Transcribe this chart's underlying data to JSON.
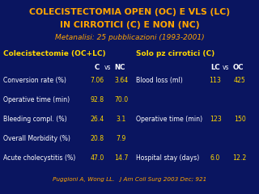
{
  "bg_color": "#0a1560",
  "title_line1": "COLECISTECTOMIA OPEN (OC) E VLS (LC)",
  "title_line2": "IN CIRROTICI (C) E NON (NC)",
  "title_line3": "Metanalisi: 25 pubblicazioni (1993-2001)",
  "left_section_title": "Colecistectomie (OC+LC)",
  "left_rows": [
    [
      "Conversion rate (%)",
      "7.06",
      "3.64"
    ],
    [
      "Operative time (min)",
      "92.8",
      "70.0"
    ],
    [
      "Bleeding compl. (%)",
      "26.4",
      "3.1"
    ],
    [
      "Overall Morbidity (%)",
      "20.8",
      "7.9"
    ],
    [
      "Acute cholecystitis (%)",
      "47.0",
      "14.7"
    ]
  ],
  "right_section_title": "Solo pz cirrotici (C)",
  "right_rows": [
    [
      "Blood loss (ml)",
      "113",
      "425"
    ],
    [
      "Operative time (min)",
      "123",
      "150"
    ],
    [
      "Hospital stay (days)",
      "6.0",
      "12.2"
    ]
  ],
  "footer": "Puggioni A, Wong LL.   J Am Coll Surg 2003 Dec; 921",
  "orange": "#FFA500",
  "white": "#FFFFFF",
  "yellow": "#FFD700"
}
